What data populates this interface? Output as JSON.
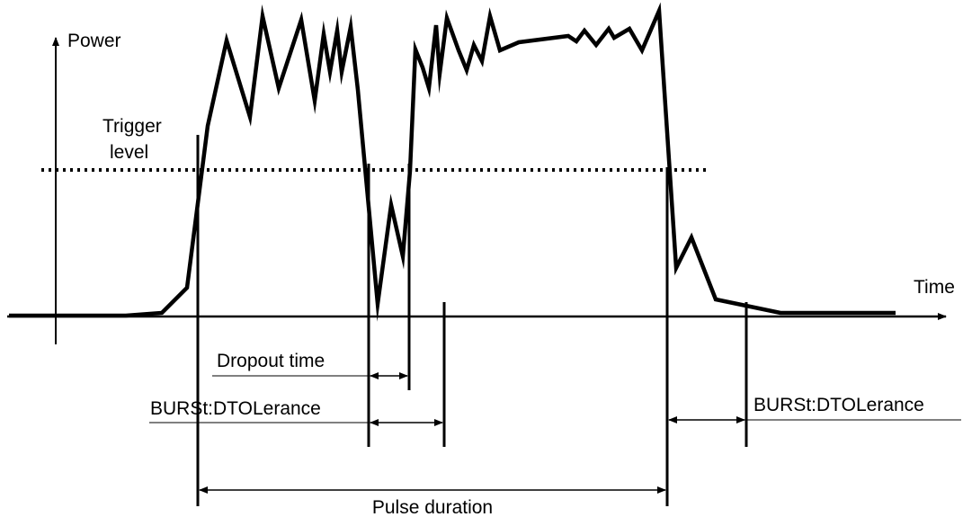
{
  "diagram": {
    "axis_labels": {
      "y": "Power",
      "x": "Time"
    },
    "trigger_label": {
      "line1": "Trigger",
      "line2": "level"
    },
    "annotations": {
      "dropout_time": "Dropout time",
      "tolerance_left": "BURSt:DTOLerance",
      "tolerance_right": "BURSt:DTOLerance",
      "pulse_duration": "Pulse duration"
    }
  }
}
